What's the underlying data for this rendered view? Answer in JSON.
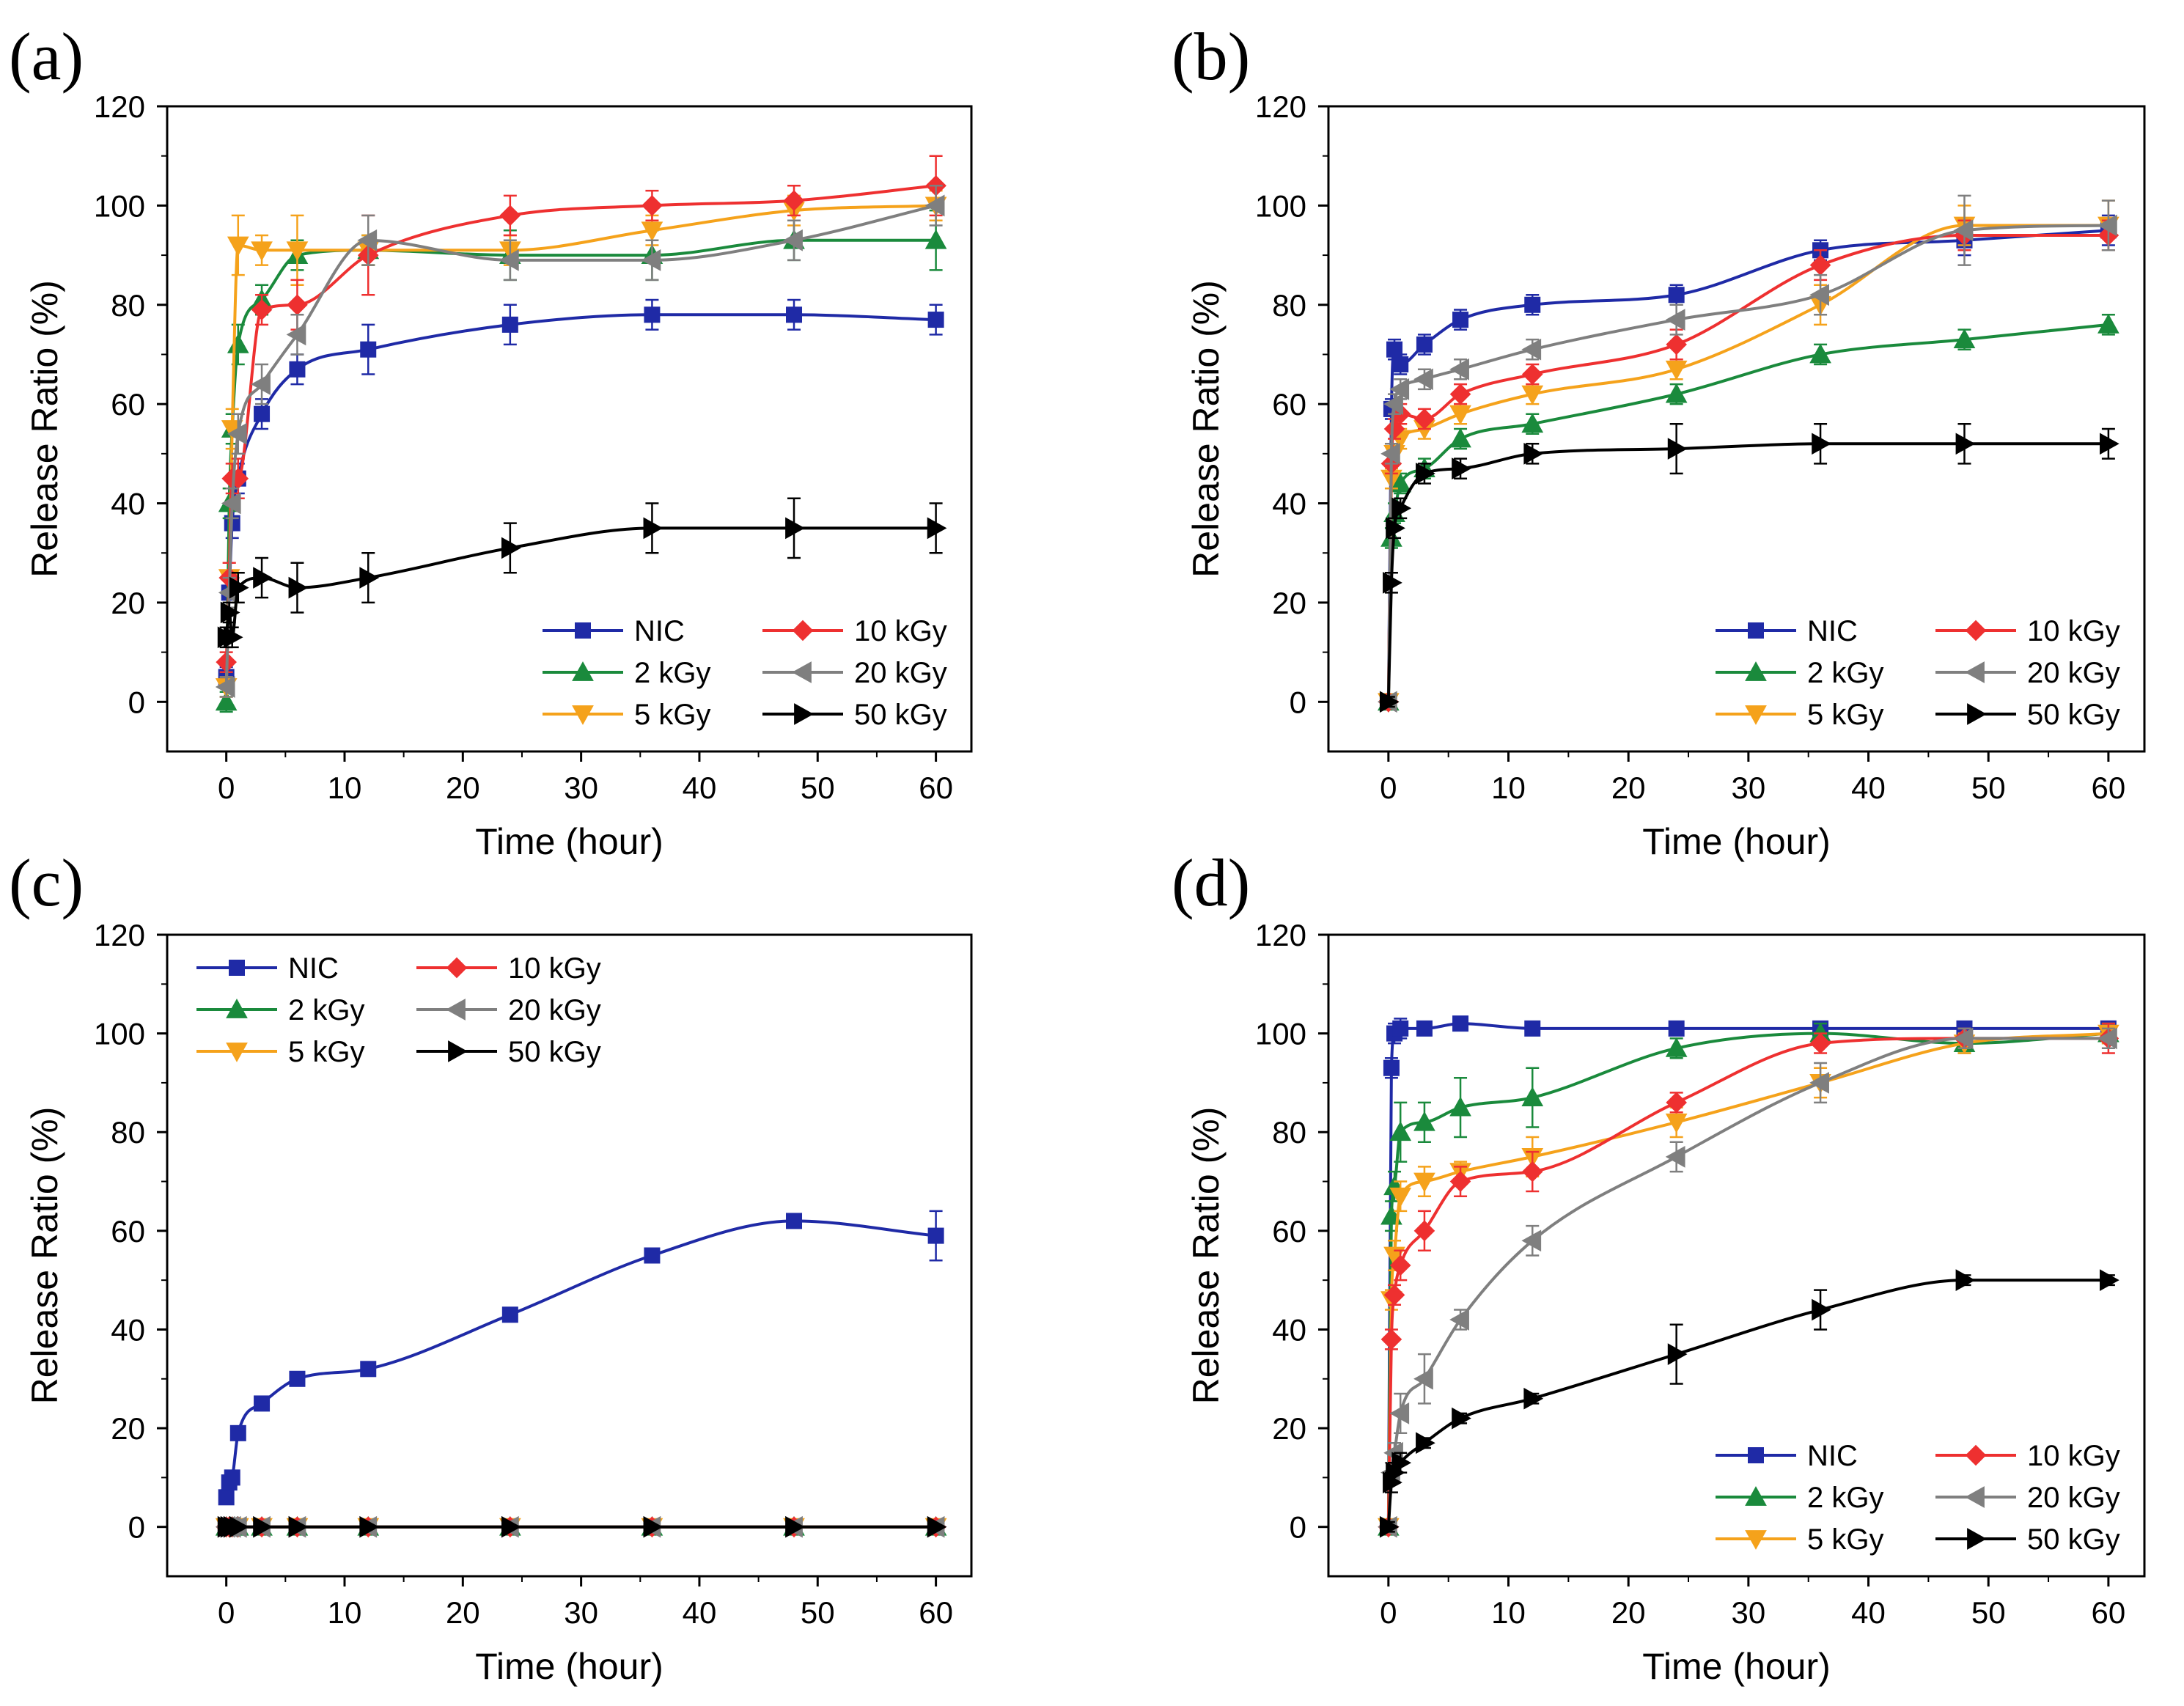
{
  "chart_data": [
    {
      "type": "line",
      "panel_label": "(a)",
      "xlabel": "Time (hour)",
      "ylabel": "Release Ratio (%)",
      "xlim": [
        -5,
        63
      ],
      "ylim": [
        -10,
        120
      ],
      "xticks": [
        0,
        10,
        20,
        30,
        40,
        50,
        60
      ],
      "yticks": [
        0,
        20,
        40,
        60,
        80,
        100,
        120
      ],
      "legend_position": "bottom-right",
      "series": [
        {
          "name": "NIC",
          "color": "#1f2aa6",
          "marker": "square",
          "x": [
            0,
            0.25,
            0.5,
            1,
            3,
            6,
            12,
            24,
            36,
            48,
            60
          ],
          "y": [
            5,
            22,
            36,
            45,
            58,
            67,
            71,
            76,
            78,
            78,
            77
          ],
          "err": [
            2,
            3,
            3,
            3,
            3,
            3,
            5,
            4,
            3,
            3,
            3
          ]
        },
        {
          "name": "2 kGy",
          "color": "#1a8a3c",
          "marker": "triangle-up",
          "x": [
            0,
            0.25,
            0.5,
            1,
            3,
            6,
            12,
            24,
            36,
            48,
            60
          ],
          "y": [
            0,
            40,
            55,
            72,
            81,
            90,
            91,
            90,
            90,
            93,
            93
          ],
          "err": [
            2,
            3,
            3,
            4,
            3,
            3,
            3,
            5,
            5,
            4,
            6
          ]
        },
        {
          "name": "5 kGy",
          "color": "#f5a21b",
          "marker": "triangle-down",
          "x": [
            0,
            0.25,
            0.5,
            1,
            3,
            6,
            12,
            24,
            36,
            48,
            60
          ],
          "y": [
            3,
            25,
            55,
            92,
            91,
            91,
            91,
            91,
            95,
            99,
            100
          ],
          "err": [
            2,
            3,
            4,
            6,
            3,
            7,
            3,
            3,
            3,
            3,
            3
          ]
        },
        {
          "name": "10 kGy",
          "color": "#ee3030",
          "marker": "diamond",
          "x": [
            0,
            0.25,
            0.5,
            1,
            3,
            6,
            12,
            24,
            36,
            48,
            60
          ],
          "y": [
            8,
            25,
            45,
            45,
            79,
            80,
            90,
            98,
            100,
            101,
            104
          ],
          "err": [
            2,
            3,
            3,
            4,
            3,
            5,
            8,
            4,
            3,
            3,
            6
          ]
        },
        {
          "name": "20 kGy",
          "color": "#7f7f7f",
          "marker": "triangle-left",
          "x": [
            0,
            0.25,
            0.5,
            1,
            3,
            6,
            12,
            24,
            36,
            48,
            60
          ],
          "y": [
            3,
            22,
            40,
            54,
            64,
            74,
            93,
            89,
            89,
            93,
            100
          ],
          "err": [
            2,
            3,
            3,
            4,
            4,
            4,
            5,
            4,
            4,
            4,
            4
          ]
        },
        {
          "name": "50 kGy",
          "color": "#000000",
          "marker": "triangle-right",
          "x": [
            0,
            0.25,
            0.5,
            1,
            3,
            6,
            12,
            24,
            36,
            48,
            60
          ],
          "y": [
            13,
            18,
            13,
            23,
            25,
            23,
            25,
            31,
            35,
            35,
            35
          ],
          "err": [
            2,
            2,
            2,
            3,
            4,
            5,
            5,
            5,
            5,
            6,
            5
          ]
        }
      ],
      "legend_labels": [
        "NIC",
        "10 kGy",
        "2 kGy",
        "20 kGy",
        "5 kGy",
        "50 kGy"
      ]
    },
    {
      "type": "line",
      "panel_label": "(b)",
      "xlabel": "Time (hour)",
      "ylabel": "Release Ratio (%)",
      "xlim": [
        -5,
        63
      ],
      "ylim": [
        -10,
        120
      ],
      "xticks": [
        0,
        10,
        20,
        30,
        40,
        50,
        60
      ],
      "yticks": [
        0,
        20,
        40,
        60,
        80,
        100,
        120
      ],
      "legend_position": "bottom-right",
      "series": [
        {
          "name": "NIC",
          "color": "#1f2aa6",
          "marker": "square",
          "x": [
            0,
            0.25,
            0.5,
            1,
            3,
            6,
            12,
            24,
            36,
            48,
            60
          ],
          "y": [
            0,
            59,
            71,
            68,
            72,
            77,
            80,
            82,
            91,
            93,
            95
          ],
          "err": [
            1,
            2,
            2,
            2,
            2,
            2,
            2,
            2,
            2,
            3,
            3
          ]
        },
        {
          "name": "2 kGy",
          "color": "#1a8a3c",
          "marker": "triangle-up",
          "x": [
            0,
            0.25,
            0.5,
            1,
            3,
            6,
            12,
            24,
            36,
            48,
            60
          ],
          "y": [
            0,
            33,
            38,
            44,
            47,
            53,
            56,
            62,
            70,
            73,
            76
          ],
          "err": [
            1,
            2,
            2,
            2,
            2,
            2,
            2,
            2,
            2,
            2,
            2
          ]
        },
        {
          "name": "5 kGy",
          "color": "#f5a21b",
          "marker": "triangle-down",
          "x": [
            0,
            0.25,
            0.5,
            1,
            3,
            6,
            12,
            24,
            36,
            48,
            60
          ],
          "y": [
            0,
            45,
            50,
            53,
            55,
            58,
            62,
            67,
            80,
            96,
            96
          ],
          "err": [
            1,
            2,
            2,
            2,
            2,
            2,
            2,
            2,
            4,
            4,
            5
          ]
        },
        {
          "name": "10 kGy",
          "color": "#ee3030",
          "marker": "diamond",
          "x": [
            0,
            0.25,
            0.5,
            1,
            3,
            6,
            12,
            24,
            36,
            48,
            60
          ],
          "y": [
            0,
            48,
            55,
            58,
            57,
            62,
            66,
            72,
            88,
            94,
            94
          ],
          "err": [
            1,
            2,
            2,
            2,
            2,
            2,
            2,
            3,
            3,
            3,
            3
          ]
        },
        {
          "name": "20 kGy",
          "color": "#7f7f7f",
          "marker": "triangle-left",
          "x": [
            0,
            0.25,
            0.5,
            1,
            3,
            6,
            12,
            24,
            36,
            48,
            60
          ],
          "y": [
            0,
            50,
            60,
            63,
            65,
            67,
            71,
            77,
            82,
            95,
            96
          ],
          "err": [
            1,
            2,
            2,
            2,
            2,
            2,
            2,
            3,
            4,
            7,
            5
          ]
        },
        {
          "name": "50 kGy",
          "color": "#000000",
          "marker": "triangle-right",
          "x": [
            0,
            0.25,
            0.5,
            1,
            3,
            6,
            12,
            24,
            36,
            48,
            60
          ],
          "y": [
            0,
            24,
            35,
            39,
            46,
            47,
            50,
            51,
            52,
            52,
            52
          ],
          "err": [
            1,
            2,
            2,
            2,
            2,
            2,
            2,
            5,
            4,
            4,
            3
          ]
        }
      ],
      "legend_labels": [
        "NIC",
        "10 kGy",
        "2 kGy",
        "20 kGy",
        "5 kGy",
        "50 kGy"
      ]
    },
    {
      "type": "line",
      "panel_label": "(c)",
      "xlabel": "Time (hour)",
      "ylabel": "Release Ratio (%)",
      "xlim": [
        -5,
        63
      ],
      "ylim": [
        -10,
        120
      ],
      "xticks": [
        0,
        10,
        20,
        30,
        40,
        50,
        60
      ],
      "yticks": [
        0,
        20,
        40,
        60,
        80,
        100,
        120
      ],
      "legend_position": "top-left",
      "series": [
        {
          "name": "NIC",
          "color": "#1f2aa6",
          "marker": "square",
          "x": [
            0,
            0.25,
            0.5,
            1,
            3,
            6,
            12,
            24,
            36,
            48,
            60
          ],
          "y": [
            6,
            9,
            10,
            19,
            25,
            30,
            32,
            43,
            55,
            62,
            59
          ],
          "err": [
            1,
            1,
            1,
            1,
            1,
            1,
            1,
            1,
            1,
            1,
            5
          ]
        },
        {
          "name": "2 kGy",
          "color": "#1a8a3c",
          "marker": "triangle-up",
          "x": [
            0,
            0.25,
            0.5,
            1,
            3,
            6,
            12,
            24,
            36,
            48,
            60
          ],
          "y": [
            0,
            0,
            0,
            0,
            0,
            0,
            0,
            0,
            0,
            0,
            0
          ],
          "err": [
            0,
            0,
            0,
            0,
            0,
            0,
            0,
            0,
            0,
            0,
            0
          ]
        },
        {
          "name": "5 kGy",
          "color": "#f5a21b",
          "marker": "triangle-down",
          "x": [
            0,
            0.25,
            0.5,
            1,
            3,
            6,
            12,
            24,
            36,
            48,
            60
          ],
          "y": [
            0,
            0,
            0,
            0,
            0,
            0,
            0,
            0,
            0,
            0,
            0
          ],
          "err": [
            0,
            0,
            0,
            0,
            0,
            0,
            0,
            0,
            0,
            0,
            0
          ]
        },
        {
          "name": "10 kGy",
          "color": "#ee3030",
          "marker": "diamond",
          "x": [
            0,
            0.25,
            0.5,
            1,
            3,
            6,
            12,
            24,
            36,
            48,
            60
          ],
          "y": [
            0,
            0,
            0,
            0,
            0,
            0,
            0,
            0,
            0,
            0,
            0
          ],
          "err": [
            0,
            0,
            0,
            0,
            0,
            0,
            0,
            0,
            0,
            0,
            0
          ]
        },
        {
          "name": "20 kGy",
          "color": "#7f7f7f",
          "marker": "triangle-left",
          "x": [
            0,
            0.25,
            0.5,
            1,
            3,
            6,
            12,
            24,
            36,
            48,
            60
          ],
          "y": [
            0,
            0,
            0,
            0,
            0,
            0,
            0,
            0,
            0,
            0,
            0
          ],
          "err": [
            0,
            0,
            0,
            0,
            0,
            0,
            0,
            0,
            0,
            0,
            0
          ]
        },
        {
          "name": "50 kGy",
          "color": "#000000",
          "marker": "triangle-right",
          "x": [
            0,
            0.25,
            0.5,
            1,
            3,
            6,
            12,
            24,
            36,
            48,
            60
          ],
          "y": [
            0,
            0,
            0,
            0,
            0,
            0,
            0,
            0,
            0,
            0,
            0
          ],
          "err": [
            0,
            0,
            0,
            0,
            0,
            0,
            0,
            0,
            0,
            0,
            0
          ]
        }
      ],
      "legend_labels": [
        "NIC",
        "10 kGy",
        "2 kGy",
        "20 kGy",
        "5 kGy",
        "50 kGy"
      ]
    },
    {
      "type": "line",
      "panel_label": "(d)",
      "xlabel": "Time (hour)",
      "ylabel": "Release Ratio (%)",
      "xlim": [
        -5,
        63
      ],
      "ylim": [
        -10,
        120
      ],
      "xticks": [
        0,
        10,
        20,
        30,
        40,
        50,
        60
      ],
      "yticks": [
        0,
        20,
        40,
        60,
        80,
        100,
        120
      ],
      "legend_position": "bottom-right",
      "series": [
        {
          "name": "NIC",
          "color": "#1f2aa6",
          "marker": "square",
          "x": [
            0,
            0.25,
            0.5,
            1,
            3,
            6,
            12,
            24,
            36,
            48,
            60
          ],
          "y": [
            0,
            93,
            100,
            101,
            101,
            102,
            101,
            101,
            101,
            101,
            101
          ],
          "err": [
            1,
            2,
            2,
            2,
            1,
            1,
            1,
            1,
            1,
            1,
            1
          ]
        },
        {
          "name": "2 kGy",
          "color": "#1a8a3c",
          "marker": "triangle-up",
          "x": [
            0,
            0.25,
            0.5,
            1,
            3,
            6,
            12,
            24,
            36,
            48,
            60
          ],
          "y": [
            0,
            63,
            69,
            80,
            82,
            85,
            87,
            97,
            100,
            98,
            100
          ],
          "err": [
            1,
            3,
            3,
            6,
            4,
            6,
            6,
            2,
            2,
            2,
            2
          ]
        },
        {
          "name": "5 kGy",
          "color": "#f5a21b",
          "marker": "triangle-down",
          "x": [
            0,
            0.25,
            0.5,
            1,
            3,
            6,
            12,
            24,
            36,
            48,
            60
          ],
          "y": [
            0,
            46,
            55,
            67,
            70,
            72,
            75,
            82,
            90,
            98,
            100
          ],
          "err": [
            1,
            2,
            3,
            3,
            3,
            2,
            4,
            3,
            3,
            2,
            2
          ]
        },
        {
          "name": "10 kGy",
          "color": "#ee3030",
          "marker": "diamond",
          "x": [
            0,
            0.25,
            0.5,
            1,
            3,
            6,
            12,
            24,
            36,
            48,
            60
          ],
          "y": [
            0,
            38,
            47,
            53,
            60,
            70,
            72,
            86,
            98,
            99,
            99
          ],
          "err": [
            1,
            2,
            2,
            3,
            4,
            3,
            4,
            2,
            2,
            2,
            3
          ]
        },
        {
          "name": "20 kGy",
          "color": "#7f7f7f",
          "marker": "triangle-left",
          "x": [
            0,
            0.25,
            0.5,
            1,
            3,
            6,
            12,
            24,
            36,
            48,
            60
          ],
          "y": [
            0,
            11,
            15,
            23,
            30,
            42,
            58,
            75,
            90,
            99,
            99
          ],
          "err": [
            1,
            2,
            2,
            4,
            5,
            2,
            3,
            3,
            4,
            2,
            2
          ]
        },
        {
          "name": "50 kGy",
          "color": "#000000",
          "marker": "triangle-right",
          "x": [
            0,
            0.25,
            0.5,
            1,
            3,
            6,
            12,
            24,
            36,
            48,
            60
          ],
          "y": [
            0,
            9,
            11,
            13,
            17,
            22,
            26,
            35,
            44,
            50,
            50
          ],
          "err": [
            1,
            2,
            2,
            2,
            1,
            1,
            1,
            6,
            4,
            1,
            1
          ]
        }
      ],
      "legend_labels": [
        "NIC",
        "10 kGy",
        "2 kGy",
        "20 kGy",
        "5 kGy",
        "50 kGy"
      ]
    }
  ]
}
